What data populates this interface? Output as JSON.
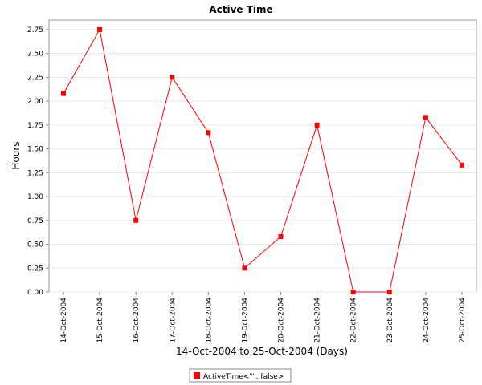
{
  "chart_data": {
    "type": "line",
    "title": "Active Time",
    "xlabel": "14-Oct-2004 to 25-Oct-2004 (Days)",
    "ylabel": "Hours",
    "categories": [
      "14-Oct-2004",
      "15-Oct-2004",
      "16-Oct-2004",
      "17-Oct-2004",
      "18-Oct-2004",
      "19-Oct-2004",
      "20-Oct-2004",
      "21-Oct-2004",
      "22-Oct-2004",
      "23-Oct-2004",
      "24-Oct-2004",
      "25-Oct-2004"
    ],
    "series": [
      {
        "name": "ActiveTime<\"\", false>",
        "color": "#ff0000",
        "marker": "square",
        "values": [
          2.08,
          2.75,
          0.75,
          2.25,
          1.67,
          0.25,
          0.58,
          1.75,
          0.0,
          0.0,
          1.83,
          1.33
        ]
      }
    ],
    "ylim": [
      0,
      2.85
    ],
    "yticks": [
      0.0,
      0.25,
      0.5,
      0.75,
      1.0,
      1.25,
      1.5,
      1.75,
      2.0,
      2.25,
      2.5,
      2.75
    ],
    "ytick_labels": [
      "0.00",
      "0.25",
      "0.50",
      "0.75",
      "1.00",
      "1.25",
      "1.50",
      "1.75",
      "2.00",
      "2.25",
      "2.50",
      "2.75"
    ],
    "grid": true,
    "legend": "bottom-center"
  }
}
